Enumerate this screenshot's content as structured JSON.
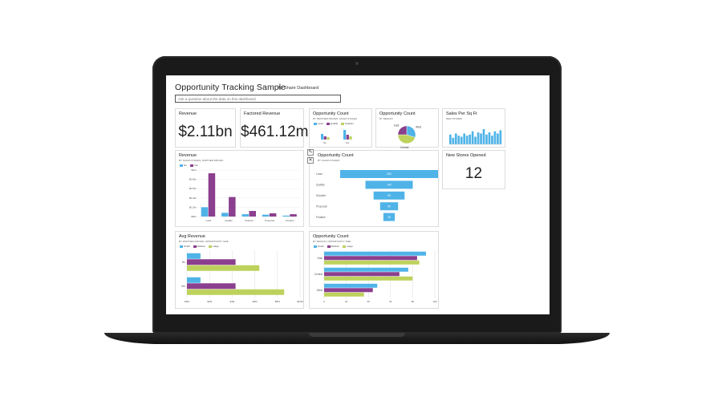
{
  "dashboard": {
    "title": "Opportunity Tracking Sample",
    "share_label": "Share Dashboard",
    "qa_placeholder": "Ask a question about the data on this dashboard"
  },
  "colors": {
    "blue": "#4fb3e8",
    "purple": "#8b3f8f",
    "green": "#bdd25c",
    "teal": "#2c7fb8"
  },
  "tiles": {
    "revenue": {
      "title": "Revenue",
      "value": "$2.11bn"
    },
    "factored": {
      "title": "Factored Revenue",
      "value": "$461.12m"
    },
    "opp_count_partner": {
      "title": "Opportunity Count",
      "subtitle": "BY PARTNER DRIVEN, SALES STAGES",
      "legend": [
        "Lead",
        "Qualify",
        "Solution"
      ],
      "xlabels": [
        "No",
        "Yes"
      ]
    },
    "opp_count_region": {
      "title": "Opportunity Count",
      "subtitle": "BY REGION",
      "labels": [
        "West",
        "Central",
        "East"
      ]
    },
    "sales_sqft": {
      "title": "Sales Per Sq Ft",
      "subtitle": "NEW STORES"
    },
    "revenue_chart": {
      "title": "Revenue",
      "subtitle": "BY SALES STAGES, PARTNER DRIVEN",
      "legend": [
        "No",
        "Yes"
      ]
    },
    "funnel": {
      "title": "Opportunity Count",
      "subtitle": "BY SALES STAGES"
    },
    "new_stores": {
      "title": "New Stores Opened",
      "value": "12"
    },
    "avg_revenue": {
      "title": "Avg Revenue",
      "subtitle": "BY PARTNER DRIVEN, OPPORTUNITY SIZE",
      "legend": [
        "Small",
        "Medium",
        "Large"
      ]
    },
    "opp_count_size": {
      "title": "Opportunity Count",
      "subtitle": "BY REGION, OPPORTUNITY SIZE",
      "legend": [
        "Small",
        "Medium",
        "Large"
      ]
    }
  },
  "chart_data": [
    {
      "type": "bar",
      "title": "Revenue",
      "categories": [
        "Lead",
        "Qualify",
        "Solution",
        "Proposal",
        "Finalize"
      ],
      "series": [
        {
          "name": "No",
          "values": [
            0.2,
            0.08,
            0.05,
            0.04,
            0.02
          ]
        },
        {
          "name": "Yes",
          "values": [
            0.93,
            0.42,
            0.12,
            0.07,
            0.05
          ]
        }
      ],
      "yticks": [
        "$0bn",
        "$0.2bn",
        "$0.4bn",
        "$0.6bn",
        "$0.8bn",
        "$1bn"
      ],
      "ylim": [
        0,
        1
      ]
    },
    {
      "type": "bar",
      "title": "Opportunity Count",
      "subtitle": "BY SALES STAGES",
      "categories": [
        "Lead",
        "Qualify",
        "Solution",
        "Proposal",
        "Finalize"
      ],
      "values": [
        300,
        145,
        95,
        55,
        35
      ],
      "value_labels": [
        "300",
        "145",
        "95",
        "55",
        "35"
      ]
    },
    {
      "type": "bar",
      "title": "Avg Revenue",
      "categories": [
        "No",
        "Yes"
      ],
      "series": [
        {
          "name": "Small",
          "values": [
            1.2,
            1.2
          ]
        },
        {
          "name": "Medium",
          "values": [
            4.3,
            4.3
          ]
        },
        {
          "name": "Large",
          "values": [
            6.4,
            8.6
          ]
        }
      ],
      "xticks": [
        "$0M",
        "$2M",
        "$4M",
        "$6M",
        "$8M",
        "$10M"
      ],
      "xlim": [
        0,
        10
      ]
    },
    {
      "type": "bar",
      "title": "Opportunity Count",
      "categories": [
        "East",
        "Central",
        "West"
      ],
      "series": [
        {
          "name": "Small",
          "values": [
            92,
            76,
            48
          ]
        },
        {
          "name": "Medium",
          "values": [
            84,
            68,
            44
          ]
        },
        {
          "name": "Large",
          "values": [
            86,
            80,
            36
          ]
        }
      ],
      "xticks": [
        "0",
        "20",
        "40",
        "60",
        "80",
        "100"
      ],
      "xlim": [
        0,
        100
      ]
    },
    {
      "type": "pie",
      "title": "Opportunity Count",
      "categories": [
        "West",
        "Central",
        "East"
      ],
      "values": [
        30,
        45,
        25
      ]
    },
    {
      "type": "bar",
      "title": "Sales Per Sq Ft",
      "values": [
        9,
        6,
        10,
        8,
        7,
        10,
        8,
        9,
        12,
        7,
        11,
        10,
        14,
        9,
        11,
        8,
        12,
        10,
        13
      ]
    },
    {
      "type": "bar",
      "title": "Opportunity Count",
      "categories": [
        "No",
        "Yes"
      ],
      "series": [
        {
          "name": "Lead",
          "values": [
            7,
            12
          ]
        },
        {
          "name": "Qualify",
          "values": [
            4,
            6
          ]
        },
        {
          "name": "Solution",
          "values": [
            3,
            4
          ]
        }
      ]
    }
  ]
}
